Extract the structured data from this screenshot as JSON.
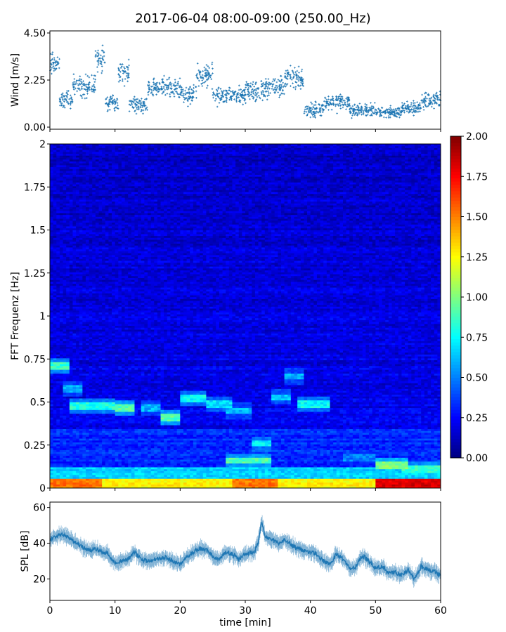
{
  "title": "2017-06-04 08:00-09:00 (250.00_Hz)",
  "colors": {
    "scatter": "#1f77b4",
    "line": "#1f77b4",
    "colormap": "jet"
  },
  "chart_data": [
    {
      "type": "scatter",
      "ylabel": "Wind [m/s]",
      "xlim": [
        0,
        60
      ],
      "ylim": [
        -0.1,
        4.6
      ],
      "yticks": [
        0.0,
        2.25,
        4.5
      ],
      "ytick_labels": [
        "0.00",
        "2.25",
        "4.50"
      ],
      "marker": "+",
      "segments": [
        {
          "x": [
            0,
            1.5
          ],
          "mean": 3.0,
          "spread": 0.8
        },
        {
          "x": [
            1.5,
            3.5
          ],
          "mean": 1.3,
          "spread": 0.7
        },
        {
          "x": [
            3.5,
            7
          ],
          "mean": 2.0,
          "spread": 0.8
        },
        {
          "x": [
            7,
            8.5
          ],
          "mean": 3.3,
          "spread": 0.9
        },
        {
          "x": [
            8.5,
            10.5
          ],
          "mean": 1.2,
          "spread": 0.6
        },
        {
          "x": [
            10.5,
            12.2
          ],
          "mean": 2.6,
          "spread": 0.8
        },
        {
          "x": [
            12.2,
            15
          ],
          "mean": 1.1,
          "spread": 0.6
        },
        {
          "x": [
            15,
            20
          ],
          "mean": 1.9,
          "spread": 0.7
        },
        {
          "x": [
            20,
            22.5
          ],
          "mean": 1.6,
          "spread": 0.7
        },
        {
          "x": [
            22.5,
            25
          ],
          "mean": 2.5,
          "spread": 0.8
        },
        {
          "x": [
            25,
            30
          ],
          "mean": 1.5,
          "spread": 0.7
        },
        {
          "x": [
            30,
            33
          ],
          "mean": 1.7,
          "spread": 0.8
        },
        {
          "x": [
            33,
            36
          ],
          "mean": 1.9,
          "spread": 0.8
        },
        {
          "x": [
            36,
            39
          ],
          "mean": 2.3,
          "spread": 0.9
        },
        {
          "x": [
            39,
            42
          ],
          "mean": 0.8,
          "spread": 0.5
        },
        {
          "x": [
            42,
            46
          ],
          "mean": 1.2,
          "spread": 0.6
        },
        {
          "x": [
            46,
            50
          ],
          "mean": 0.8,
          "spread": 0.45
        },
        {
          "x": [
            50,
            54
          ],
          "mean": 0.7,
          "spread": 0.4
        },
        {
          "x": [
            54,
            57
          ],
          "mean": 0.9,
          "spread": 0.45
        },
        {
          "x": [
            57,
            60
          ],
          "mean": 1.3,
          "spread": 0.6
        }
      ]
    },
    {
      "type": "heatmap",
      "ylabel": "FFT Frequenz [Hz]",
      "xlim": [
        0,
        60
      ],
      "ylim": [
        0,
        2
      ],
      "yticks": [
        0,
        0.25,
        0.5,
        0.75,
        1,
        1.25,
        1.5,
        1.75,
        2
      ],
      "ytick_labels": [
        "0",
        "0.25",
        "0.5",
        "0.75",
        "1",
        "1.25",
        "1.5",
        "1.75",
        "2"
      ],
      "colorbar": {
        "vmin": 0.0,
        "vmax": 2.0,
        "ticks": [
          0.0,
          0.25,
          0.5,
          0.75,
          1.0,
          1.25,
          1.5,
          1.75,
          2.0
        ],
        "tick_labels": [
          "0.00",
          "0.25",
          "0.50",
          "0.75",
          "1.00",
          "1.25",
          "1.50",
          "1.75",
          "2.00"
        ]
      },
      "features": [
        {
          "x": [
            0,
            3
          ],
          "y": 0.71,
          "value": 0.95
        },
        {
          "x": [
            2,
            5
          ],
          "y": 0.58,
          "value": 0.7
        },
        {
          "x": [
            3,
            10
          ],
          "y": 0.48,
          "value": 0.9
        },
        {
          "x": [
            10,
            13
          ],
          "y": 0.47,
          "value": 1.0
        },
        {
          "x": [
            14,
            17
          ],
          "y": 0.47,
          "value": 0.7
        },
        {
          "x": [
            17,
            20
          ],
          "y": 0.41,
          "value": 1.0
        },
        {
          "x": [
            20,
            24
          ],
          "y": 0.52,
          "value": 0.85
        },
        {
          "x": [
            24,
            28
          ],
          "y": 0.49,
          "value": 0.8
        },
        {
          "x": [
            27,
            31
          ],
          "y": 0.45,
          "value": 0.7
        },
        {
          "x": [
            34,
            37
          ],
          "y": 0.53,
          "value": 0.75
        },
        {
          "x": [
            36,
            39
          ],
          "y": 0.65,
          "value": 0.7
        },
        {
          "x": [
            38,
            43
          ],
          "y": 0.49,
          "value": 0.85
        },
        {
          "x": [
            27,
            34
          ],
          "y": 0.16,
          "value": 1.0
        },
        {
          "x": [
            31,
            34
          ],
          "y": 0.26,
          "value": 0.85
        },
        {
          "x": [
            45,
            50
          ],
          "y": 0.18,
          "value": 0.6
        },
        {
          "x": [
            50,
            55
          ],
          "y": 0.13,
          "value": 1.1
        },
        {
          "x": [
            54,
            60
          ],
          "y": 0.11,
          "value": 0.95
        }
      ]
    },
    {
      "type": "line",
      "ylabel": "SPL [dB]",
      "xlabel": "time [min]",
      "xlim": [
        0,
        60
      ],
      "ylim": [
        8,
        63
      ],
      "xticks": [
        0,
        10,
        20,
        30,
        40,
        50,
        60
      ],
      "xtick_labels": [
        "0",
        "10",
        "20",
        "30",
        "40",
        "50",
        "60"
      ],
      "yticks": [
        20,
        40,
        60
      ],
      "ytick_labels": [
        "20",
        "40",
        "60"
      ],
      "x": [
        0,
        2,
        3,
        4,
        5,
        6,
        7,
        8,
        9,
        10,
        11,
        12,
        13,
        14,
        15,
        16,
        18,
        19,
        20,
        21,
        22,
        23,
        24,
        25,
        26,
        27,
        28,
        29,
        30,
        31,
        31.5,
        32,
        32.5,
        33,
        34,
        35,
        36,
        37,
        38,
        39,
        40,
        41,
        42,
        43,
        44,
        45,
        46,
        47,
        48,
        49,
        50,
        51,
        52,
        53,
        54,
        55,
        56,
        57,
        58,
        59,
        60
      ],
      "y": [
        42,
        45,
        43,
        40,
        38,
        36,
        37,
        35,
        34,
        29,
        30,
        31,
        35,
        31,
        30,
        31,
        32,
        30,
        28,
        32,
        35,
        37,
        36,
        33,
        31,
        35,
        34,
        31,
        34,
        35,
        36,
        40,
        52,
        44,
        42,
        40,
        42,
        39,
        37,
        36,
        35,
        34,
        30,
        28,
        34,
        31,
        26,
        27,
        33,
        30,
        26,
        27,
        23,
        24,
        22,
        25,
        20,
        27,
        25,
        24,
        22
      ]
    }
  ]
}
